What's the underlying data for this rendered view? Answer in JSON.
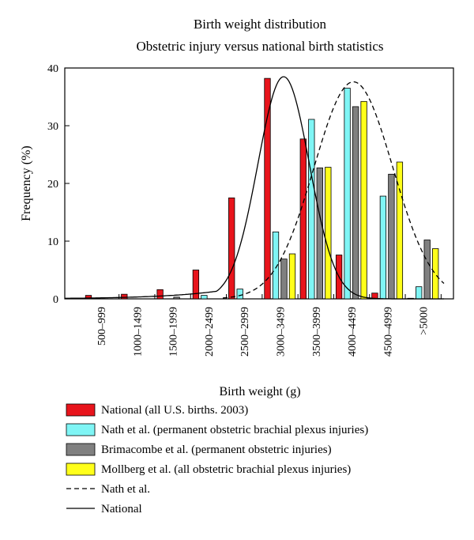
{
  "chart_data": {
    "type": "bar",
    "title": "Birth weight distribution",
    "subtitle": "Obstetric injury versus national birth statistics",
    "xlabel": "Birth weight (g)",
    "ylabel": "Frequency (%)",
    "ylim": [
      0,
      40
    ],
    "yticks": [
      0,
      10,
      20,
      30,
      40
    ],
    "grid": false,
    "legend_position": "bottom",
    "categories": [
      "500–999",
      "1000–1499",
      "1500–1999",
      "2000–2499",
      "2500–2999",
      "3000–3499",
      "3500–3999",
      "4000–4499",
      "4500–4999",
      ">5000"
    ],
    "series": [
      {
        "name": "National (all U.S. births. 2003)",
        "color": "#e8141c",
        "values": [
          0.6,
          0.8,
          1.6,
          5.0,
          17.5,
          38.2,
          27.7,
          7.6,
          1.0,
          0.1
        ]
      },
      {
        "name": "Nath et al. (permanent obstetric brachial plexus injuries)",
        "color": "#7ff5f5",
        "values": [
          0,
          0,
          0,
          0.6,
          1.7,
          11.6,
          31.1,
          36.5,
          17.8,
          2.1
        ]
      },
      {
        "name": "Brimacombe et al. (permanent obstetric injuries)",
        "color": "#808080",
        "values": [
          0,
          0,
          0.3,
          0,
          0,
          6.9,
          22.7,
          33.3,
          21.6,
          10.2
        ]
      },
      {
        "name": "Mollberg et al. (all obstetric brachial plexus injuries)",
        "color": "#ffff1a",
        "values": [
          0,
          0,
          0,
          0,
          0,
          7.8,
          22.8,
          34.2,
          23.7,
          8.7
        ]
      }
    ],
    "curves": [
      {
        "name": "Nath et al.",
        "style": "dashed",
        "mean_category_index": 7.05,
        "sd_category_index": 1.1,
        "peak": 37.6
      },
      {
        "name": "National",
        "style": "solid",
        "mean_category_index": 5.1,
        "sd_category_index": 0.72,
        "peak": 38.5,
        "left_tail_scale": 1.6
      }
    ]
  }
}
